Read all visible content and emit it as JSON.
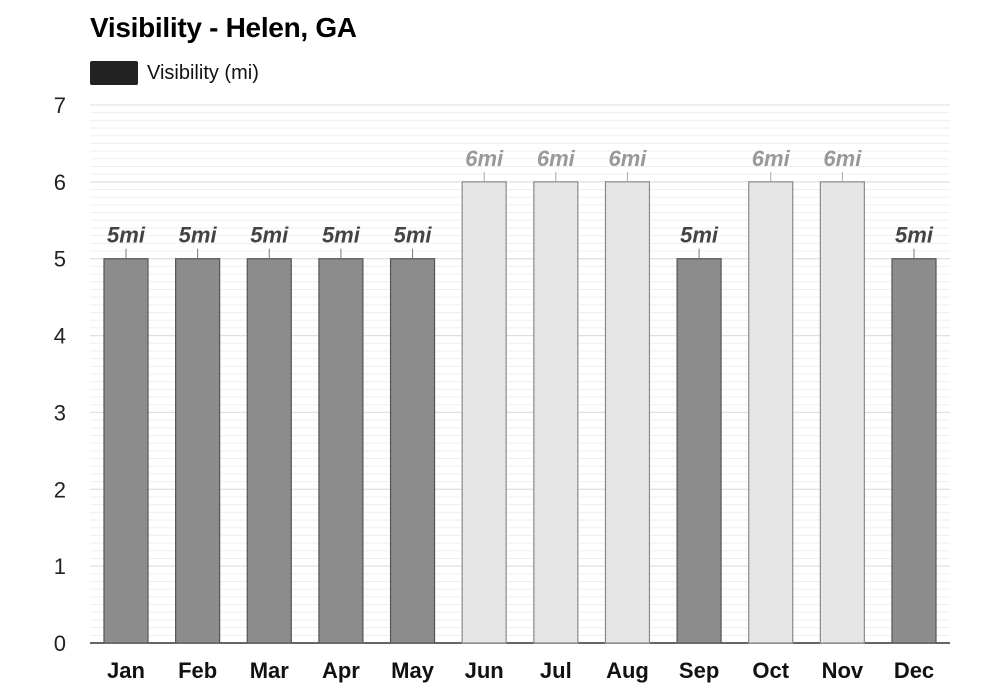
{
  "title": "Visibility - Helen, GA",
  "legend": {
    "label": "Visibility (mi)",
    "swatch_color": "#222222"
  },
  "chart_data": {
    "type": "bar",
    "title": "Visibility - Helen, GA",
    "xlabel": "",
    "ylabel": "",
    "ylim": [
      0,
      7
    ],
    "yticks": [
      0,
      1,
      2,
      3,
      4,
      5,
      6,
      7
    ],
    "grid": true,
    "legend_position": "top-left",
    "categories": [
      "Jan",
      "Feb",
      "Mar",
      "Apr",
      "May",
      "Jun",
      "Jul",
      "Aug",
      "Sep",
      "Oct",
      "Nov",
      "Dec"
    ],
    "series": [
      {
        "name": "Visibility (mi)",
        "values": [
          5,
          5,
          5,
          5,
          5,
          6,
          6,
          6,
          5,
          6,
          6,
          5
        ],
        "labels": [
          "5mi",
          "5mi",
          "5mi",
          "5mi",
          "5mi",
          "6mi",
          "6mi",
          "6mi",
          "5mi",
          "6mi",
          "6mi",
          "5mi"
        ]
      }
    ],
    "colors": {
      "dark_bar": "#8c8c8c",
      "dark_bar_border": "#555555",
      "light_bar": "#e6e6e6",
      "light_bar_border": "#8a8a8a",
      "dark_label": "#444444",
      "light_label": "#999999"
    }
  }
}
